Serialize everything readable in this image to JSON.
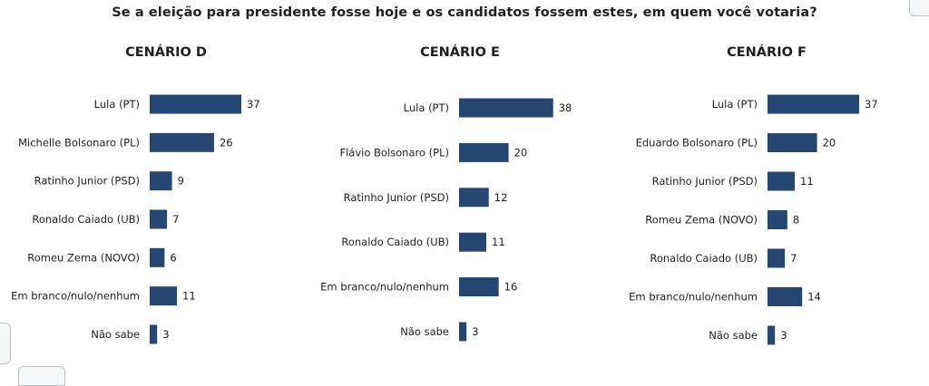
{
  "question": "Se a eleição para presidente fosse hoje e os candidatos fossem estes, em quem você votaria?",
  "colors": {
    "bar": "#264773",
    "text": "#1f1f1f"
  },
  "chart_data": [
    {
      "type": "bar",
      "orientation": "horizontal",
      "title": "CENÁRIO D",
      "categories": [
        "Lula (PT)",
        "Michelle Bolsonaro (PL)",
        "Ratinho Junior (PSD)",
        "Ronaldo Caiado (UB)",
        "Romeu Zema (NOVO)",
        "Em branco/nulo/nenhum",
        "Não sabe"
      ],
      "values": [
        37,
        26,
        9,
        7,
        6,
        11,
        3
      ],
      "xlim": [
        0,
        38
      ]
    },
    {
      "type": "bar",
      "orientation": "horizontal",
      "title": "CENÁRIO E",
      "categories": [
        "Lula (PT)",
        "Flávio Bolsonaro (PL)",
        "Ratinho Junior (PSD)",
        "Ronaldo Caiado (UB)",
        "Em branco/nulo/nenhum",
        "Não sabe"
      ],
      "values": [
        38,
        20,
        12,
        11,
        16,
        3
      ],
      "xlim": [
        0,
        38
      ]
    },
    {
      "type": "bar",
      "orientation": "horizontal",
      "title": "CENÁRIO F",
      "categories": [
        "Lula (PT)",
        "Eduardo Bolsonaro (PL)",
        "Ratinho Junior (PSD)",
        "Romeu Zema (NOVO)",
        "Ronaldo Caiado (UB)",
        "Em branco/nulo/nenhum",
        "Não sabe"
      ],
      "values": [
        37,
        20,
        11,
        8,
        7,
        14,
        3
      ],
      "xlim": [
        0,
        38
      ]
    }
  ]
}
